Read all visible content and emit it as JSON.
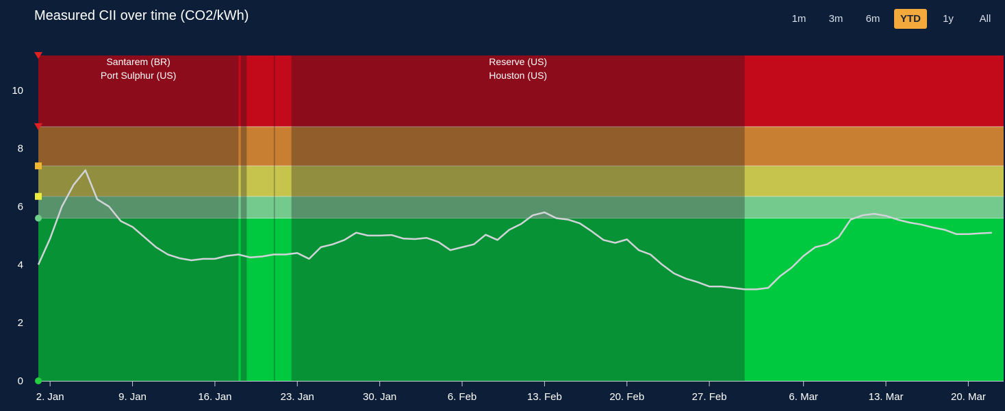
{
  "header": {
    "title": "Measured CII over time (CO2/kWh)",
    "ranges": [
      "1m",
      "3m",
      "6m",
      "YTD",
      "1y",
      "All"
    ],
    "active_range": "YTD"
  },
  "chart_data": {
    "type": "line",
    "title": "Measured CII over time (CO2/kWh)",
    "xlabel": "",
    "ylabel": "",
    "x_range": [
      "2024-01-01",
      "2024-03-23"
    ],
    "ylim": [
      0,
      11.2
    ],
    "y_ticks": [
      0,
      2,
      4,
      6,
      8,
      10
    ],
    "x_ticks": [
      {
        "date": "2024-01-02",
        "label": "2. Jan"
      },
      {
        "date": "2024-01-09",
        "label": "9. Jan"
      },
      {
        "date": "2024-01-16",
        "label": "16. Jan"
      },
      {
        "date": "2024-01-23",
        "label": "23. Jan"
      },
      {
        "date": "2024-01-30",
        "label": "30. Jan"
      },
      {
        "date": "2024-02-06",
        "label": "6. Feb"
      },
      {
        "date": "2024-02-13",
        "label": "13. Feb"
      },
      {
        "date": "2024-02-20",
        "label": "20. Feb"
      },
      {
        "date": "2024-02-27",
        "label": "27. Feb"
      },
      {
        "date": "2024-03-06",
        "label": "6. Mar"
      },
      {
        "date": "2024-03-13",
        "label": "13. Mar"
      },
      {
        "date": "2024-03-20",
        "label": "20. Mar"
      }
    ],
    "bands": [
      {
        "from": 0,
        "to": 5.6,
        "color": "#00c940"
      },
      {
        "from": 5.6,
        "to": 6.35,
        "color": "#74c98d"
      },
      {
        "from": 6.35,
        "to": 7.4,
        "color": "#c7c44e"
      },
      {
        "from": 7.4,
        "to": 8.75,
        "color": "#c87f32"
      },
      {
        "from": 8.75,
        "to": 11.2,
        "color": "#c20a1a"
      }
    ],
    "threshold_markers": [
      {
        "value": 0,
        "color": "#22d040",
        "shape": "circle"
      },
      {
        "value": 5.6,
        "color": "#6fd08a",
        "shape": "circle"
      },
      {
        "value": 6.35,
        "color": "#ecec3c",
        "shape": "square"
      },
      {
        "value": 7.4,
        "color": "#f0b630",
        "shape": "square"
      },
      {
        "value": 8.75,
        "color": "#e02020",
        "shape": "triangle-down"
      },
      {
        "value": 11.2,
        "color": "#e02020",
        "shape": "triangle-down"
      }
    ],
    "voyage_periods": [
      {
        "from": "2024-01-01",
        "to": "2024-01-18",
        "labels": [
          "Santarem (BR)",
          "Port Sulphur (US)"
        ]
      },
      {
        "from": "2024-01-18.2",
        "to": "2024-01-18.7",
        "labels": []
      },
      {
        "from": "2024-01-21",
        "to": "2024-01-21.1",
        "labels": []
      },
      {
        "from": "2024-01-22.5",
        "to": "2024-03-01",
        "labels": [
          "Reserve (US)",
          "Houston (US)"
        ]
      }
    ],
    "series": [
      {
        "color": "#d0d4d8",
        "points": [
          [
            "2024-01-01",
            4.0
          ],
          [
            "2024-01-02",
            4.9
          ],
          [
            "2024-01-03",
            6.0
          ],
          [
            "2024-01-04",
            6.75
          ],
          [
            "2024-01-05",
            7.25
          ],
          [
            "2024-01-06",
            6.25
          ],
          [
            "2024-01-07",
            6.0
          ],
          [
            "2024-01-08",
            5.5
          ],
          [
            "2024-01-09",
            5.3
          ],
          [
            "2024-01-10",
            4.95
          ],
          [
            "2024-01-11",
            4.6
          ],
          [
            "2024-01-12",
            4.35
          ],
          [
            "2024-01-13",
            4.22
          ],
          [
            "2024-01-14",
            4.15
          ],
          [
            "2024-01-15",
            4.2
          ],
          [
            "2024-01-16",
            4.2
          ],
          [
            "2024-01-17",
            4.3
          ],
          [
            "2024-01-18",
            4.35
          ],
          [
            "2024-01-19",
            4.25
          ],
          [
            "2024-01-20",
            4.28
          ],
          [
            "2024-01-21",
            4.35
          ],
          [
            "2024-01-22",
            4.35
          ],
          [
            "2024-01-23",
            4.4
          ],
          [
            "2024-01-24",
            4.2
          ],
          [
            "2024-01-25",
            4.6
          ],
          [
            "2024-01-26",
            4.7
          ],
          [
            "2024-01-27",
            4.85
          ],
          [
            "2024-01-28",
            5.1
          ],
          [
            "2024-01-29",
            5.0
          ],
          [
            "2024-01-30",
            5.0
          ],
          [
            "2024-01-31",
            5.02
          ],
          [
            "2024-02-01",
            4.9
          ],
          [
            "2024-02-02",
            4.88
          ],
          [
            "2024-02-03",
            4.92
          ],
          [
            "2024-02-04",
            4.78
          ],
          [
            "2024-02-05",
            4.5
          ],
          [
            "2024-02-06",
            4.6
          ],
          [
            "2024-02-07",
            4.7
          ],
          [
            "2024-02-08",
            5.03
          ],
          [
            "2024-02-09",
            4.85
          ],
          [
            "2024-02-10",
            5.2
          ],
          [
            "2024-02-11",
            5.4
          ],
          [
            "2024-02-12",
            5.7
          ],
          [
            "2024-02-13",
            5.8
          ],
          [
            "2024-02-14",
            5.6
          ],
          [
            "2024-02-15",
            5.55
          ],
          [
            "2024-02-16",
            5.42
          ],
          [
            "2024-02-17",
            5.15
          ],
          [
            "2024-02-18",
            4.85
          ],
          [
            "2024-02-19",
            4.75
          ],
          [
            "2024-02-20",
            4.87
          ],
          [
            "2024-02-21",
            4.5
          ],
          [
            "2024-02-22",
            4.35
          ],
          [
            "2024-02-23",
            4.0
          ],
          [
            "2024-02-24",
            3.7
          ],
          [
            "2024-02-25",
            3.52
          ],
          [
            "2024-02-26",
            3.4
          ],
          [
            "2024-02-27",
            3.25
          ],
          [
            "2024-02-28",
            3.25
          ],
          [
            "2024-02-29",
            3.2
          ],
          [
            "2024-03-01",
            3.15
          ],
          [
            "2024-03-02",
            3.15
          ],
          [
            "2024-03-03",
            3.2
          ],
          [
            "2024-03-04",
            3.6
          ],
          [
            "2024-03-05",
            3.9
          ],
          [
            "2024-03-06",
            4.3
          ],
          [
            "2024-03-07",
            4.6
          ],
          [
            "2024-03-08",
            4.7
          ],
          [
            "2024-03-09",
            4.95
          ],
          [
            "2024-03-10",
            5.55
          ],
          [
            "2024-03-11",
            5.7
          ],
          [
            "2024-03-12",
            5.75
          ],
          [
            "2024-03-13",
            5.68
          ],
          [
            "2024-03-14",
            5.55
          ],
          [
            "2024-03-15",
            5.45
          ],
          [
            "2024-03-16",
            5.38
          ],
          [
            "2024-03-17",
            5.28
          ],
          [
            "2024-03-18",
            5.2
          ],
          [
            "2024-03-19",
            5.05
          ],
          [
            "2024-03-20",
            5.05
          ],
          [
            "2024-03-21",
            5.08
          ],
          [
            "2024-03-22",
            5.1
          ]
        ]
      }
    ]
  }
}
